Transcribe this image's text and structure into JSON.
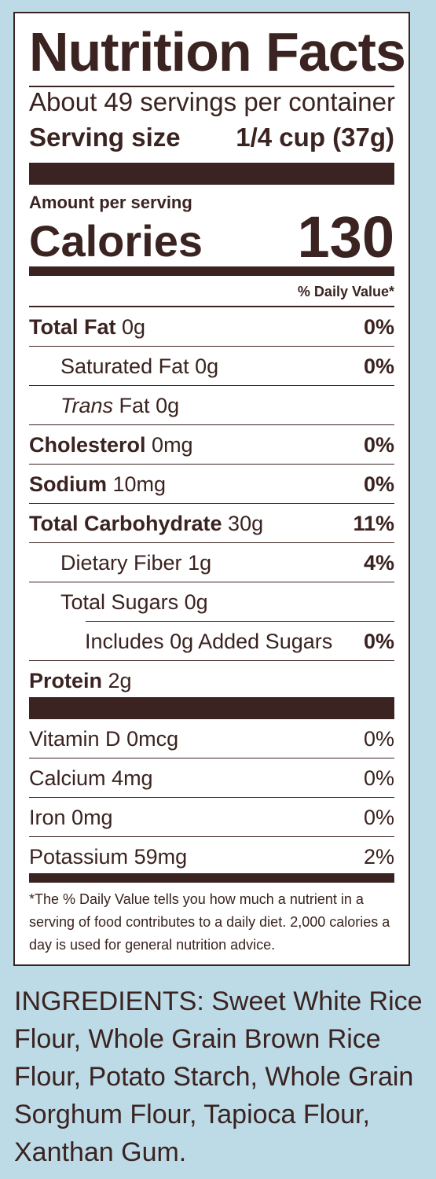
{
  "label": {
    "title": "Nutrition Facts",
    "servings_per_container": "About 49 servings per container",
    "serving_size_label": "Serving size",
    "serving_size_value": "1/4 cup (37g)",
    "amount_per_serving": "Amount per serving",
    "calories_label": "Calories",
    "calories_value": "130",
    "daily_value_header": "% Daily Value*",
    "nutrients": [
      {
        "name": "Total Fat",
        "amount": "0g",
        "dv": "0%"
      },
      {
        "name": "Saturated Fat",
        "amount": "0g",
        "dv": "0%"
      },
      {
        "name_italic": "Trans",
        "name": "Fat",
        "amount": "0g",
        "dv": ""
      },
      {
        "name": "Cholesterol",
        "amount": "0mg",
        "dv": "0%"
      },
      {
        "name": "Sodium",
        "amount": "10mg",
        "dv": "0%"
      },
      {
        "name": "Total Carbohydrate",
        "amount": "30g",
        "dv": "11%"
      },
      {
        "name": "Dietary Fiber",
        "amount": "1g",
        "dv": "4%"
      },
      {
        "name": "Total Sugars",
        "amount": "0g",
        "dv": ""
      },
      {
        "name": "Includes 0g Added Sugars",
        "amount": "",
        "dv": "0%"
      },
      {
        "name": "Protein",
        "amount": "2g",
        "dv": ""
      }
    ],
    "vitamins": [
      {
        "name": "Vitamin D",
        "amount": "0mcg",
        "dv": "0%"
      },
      {
        "name": "Calcium",
        "amount": "4mg",
        "dv": "0%"
      },
      {
        "name": "Iron",
        "amount": "0mg",
        "dv": "0%"
      },
      {
        "name": "Potassium",
        "amount": "59mg",
        "dv": "2%"
      }
    ],
    "footnote": "*The % Daily Value tells you how much a nutrient in a serving of food contributes to a daily diet. 2,000 calories a day is used for general nutrition advice."
  },
  "ingredients": "INGREDIENTS: Sweet White Rice Flour, Whole Grain Brown Rice Flour, Potato Starch, Whole Grain Sorghum Flour, Tapioca Flour, Xanthan Gum.",
  "colors": {
    "background": "#bcdbe7",
    "panel": "#ffffff",
    "ink": "#3a2320"
  }
}
